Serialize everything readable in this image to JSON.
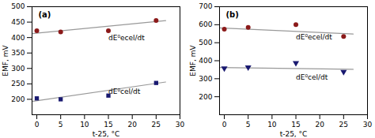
{
  "chart_data": [
    {
      "type": "scatter",
      "title": "(a)",
      "x_label": "t-25, °C",
      "y_label": "EMF, mV",
      "xlim": [
        -1,
        30
      ],
      "ylim": [
        150,
        500
      ],
      "xticks": [
        0,
        5,
        10,
        15,
        20,
        25,
        30
      ],
      "yticks": [
        200,
        250,
        300,
        350,
        400,
        450,
        500
      ],
      "grid": false,
      "series": [
        {
          "type": "line",
          "color": "#999999",
          "x": [
            -1,
            27
          ],
          "values": [
            413,
            455
          ]
        },
        {
          "type": "scatter",
          "color": "#8B1A1A",
          "marker": "circle",
          "x": [
            0,
            5,
            15,
            25
          ],
          "values": [
            422,
            418,
            422,
            455
          ]
        },
        {
          "type": "line",
          "color": "#999999",
          "x": [
            -1,
            27
          ],
          "values": [
            193,
            256
          ]
        },
        {
          "type": "scatter",
          "color": "#191970",
          "marker": "square",
          "x": [
            0,
            5,
            15,
            25
          ],
          "values": [
            203,
            200,
            212,
            253
          ]
        }
      ],
      "annotations": [
        {
          "text": "dE⁰ecel/dt",
          "x": 15,
          "y": 398
        },
        {
          "text": "dE⁰cel/dt",
          "x": 15,
          "y": 224
        }
      ]
    },
    {
      "type": "scatter",
      "title": "(b)",
      "x_label": "t-25, °C",
      "y_label": "EMF, mV",
      "xlim": [
        -1,
        30
      ],
      "ylim": [
        100,
        700
      ],
      "xticks": [
        0,
        5,
        10,
        15,
        20,
        25,
        30
      ],
      "yticks": [
        200,
        300,
        400,
        500,
        600,
        700
      ],
      "grid": false,
      "series": [
        {
          "type": "line",
          "color": "#999999",
          "x": [
            -1,
            27
          ],
          "values": [
            582,
            548
          ]
        },
        {
          "type": "scatter",
          "color": "#8B1A1A",
          "marker": "circle",
          "x": [
            0,
            5,
            15,
            25
          ],
          "values": [
            575,
            585,
            600,
            535
          ]
        },
        {
          "type": "line",
          "color": "#999999",
          "x": [
            -1,
            27
          ],
          "values": [
            362,
            352
          ]
        },
        {
          "type": "scatter",
          "color": "#191970",
          "marker": "triangle-down",
          "x": [
            0,
            5,
            15,
            25
          ],
          "values": [
            358,
            363,
            388,
            338
          ]
        }
      ],
      "annotations": [
        {
          "text": "dE⁰ecel/dt",
          "x": 15,
          "y": 530
        },
        {
          "text": "dE⁰cel/dt",
          "x": 15,
          "y": 308
        }
      ]
    }
  ]
}
